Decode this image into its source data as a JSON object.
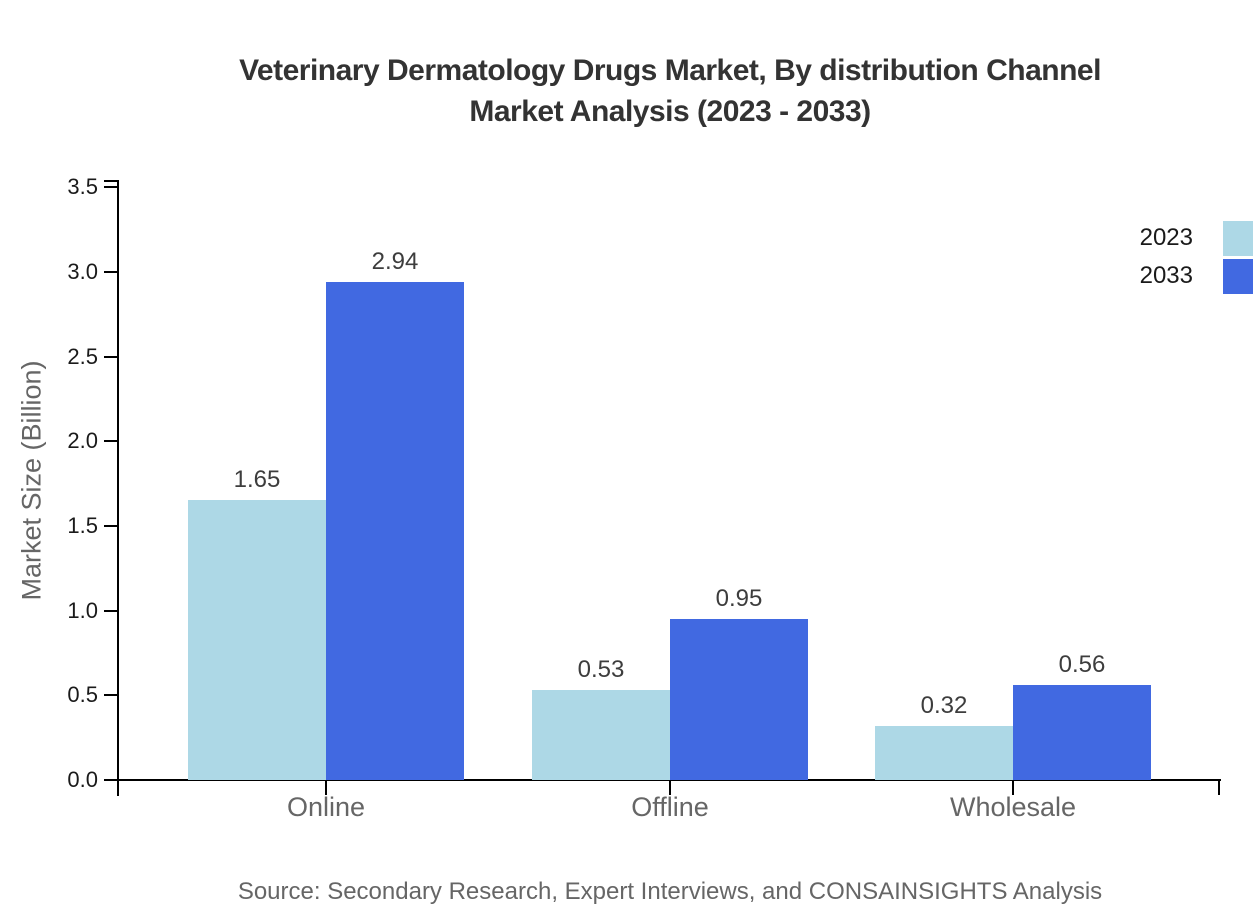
{
  "title": {
    "line1": "Veterinary Dermatology Drugs Market, By distribution Channel",
    "line2": "Market Analysis (2023 - 2033)"
  },
  "source": "Source: Secondary Research, Expert Interviews, and CONSAINSIGHTS Analysis",
  "chart_data": {
    "type": "bar",
    "categories": [
      "Online",
      "Offline",
      "Wholesale"
    ],
    "series": [
      {
        "name": "2023",
        "color": "#ADD8E6",
        "values": [
          1.65,
          0.53,
          0.32
        ]
      },
      {
        "name": "2033",
        "color": "#4169E1",
        "values": [
          2.94,
          0.95,
          0.56
        ]
      }
    ],
    "title": "Veterinary Dermatology Drugs Market, By distribution Channel Market Analysis (2023 - 2033)",
    "xlabel": "",
    "ylabel": "Market Size (Billion)",
    "ylim": [
      0.0,
      3.5
    ],
    "ytick_step": 0.5,
    "grid": false,
    "legend_position": "top-right",
    "value_labels": true
  },
  "colors": {
    "axis": "#000000",
    "tick_text": "#1a1a1a",
    "muted_text": "#666666",
    "value_text": "#3d3d3d",
    "title_text": "#333333",
    "background": "#ffffff"
  }
}
